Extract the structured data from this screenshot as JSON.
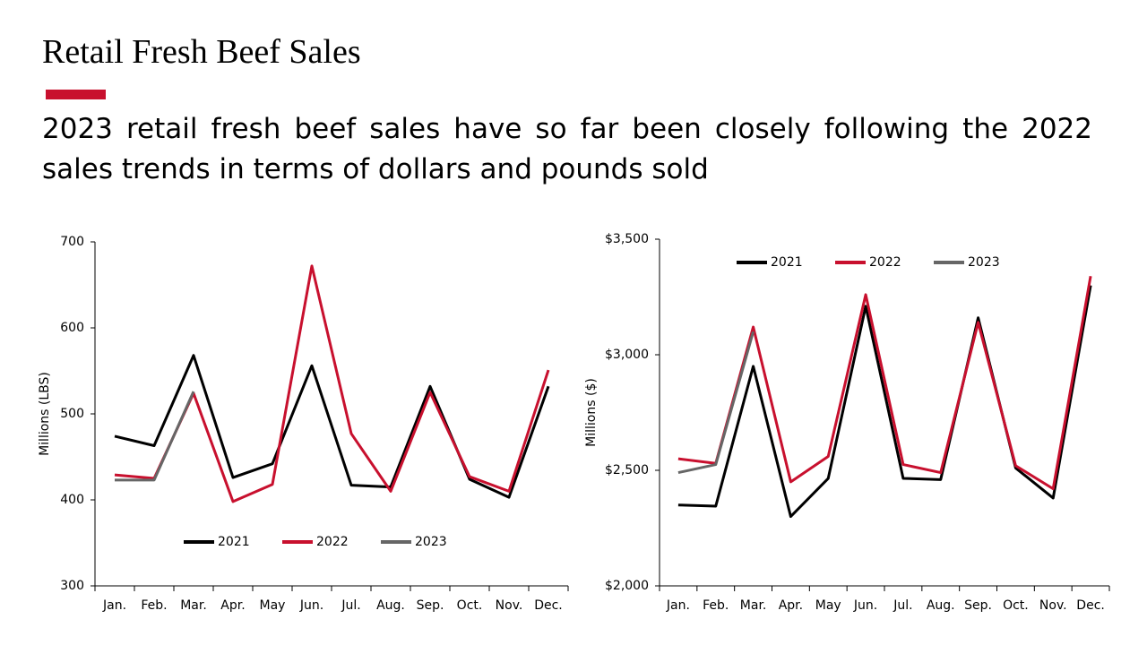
{
  "title": "Retail Fresh Beef Sales",
  "subtitle": "2023 retail fresh beef sales have so far been closely following the 2022 sales trends in terms of dollars and pounds sold",
  "chart_data": [
    {
      "type": "line",
      "ylabel": "Millions (LBS)",
      "categories": [
        "Jan.",
        "Feb.",
        "Mar.",
        "Apr.",
        "May",
        "Jun.",
        "Jul.",
        "Aug.",
        "Sep.",
        "Oct.",
        "Nov.",
        "Dec."
      ],
      "series": [
        {
          "name": "2021",
          "color": "#000000",
          "values": [
            474,
            463,
            568,
            426,
            442,
            556,
            417,
            415,
            532,
            424,
            403,
            532
          ]
        },
        {
          "name": "2022",
          "color": "#c8102e",
          "values": [
            429,
            425,
            524,
            398,
            418,
            672,
            477,
            410,
            525,
            427,
            410,
            551
          ]
        },
        {
          "name": "2023",
          "color": "#666666",
          "values": [
            423,
            423,
            526,
            null,
            null,
            null,
            null,
            null,
            null,
            null,
            null,
            null
          ]
        }
      ],
      "ylim": [
        300,
        700
      ],
      "yticks": [
        300,
        400,
        500,
        600,
        700
      ],
      "legend": "lower center"
    },
    {
      "type": "line",
      "ylabel": "Millions ($)",
      "categories": [
        "Jan.",
        "Feb.",
        "Mar.",
        "Apr.",
        "May",
        "Jun.",
        "Jul.",
        "Aug.",
        "Sep.",
        "Oct.",
        "Nov.",
        "Dec."
      ],
      "series": [
        {
          "name": "2021",
          "color": "#000000",
          "values": [
            2350,
            2345,
            2950,
            2300,
            2465,
            3210,
            2465,
            2460,
            3160,
            2510,
            2380,
            3300
          ]
        },
        {
          "name": "2022",
          "color": "#c8102e",
          "values": [
            2550,
            2530,
            3120,
            2450,
            2560,
            3260,
            2525,
            2490,
            3140,
            2520,
            2420,
            3340
          ]
        },
        {
          "name": "2023",
          "color": "#666666",
          "values": [
            2490,
            2525,
            3100,
            null,
            null,
            null,
            null,
            null,
            null,
            null,
            null,
            null
          ]
        }
      ],
      "ylim": [
        2000,
        3500
      ],
      "yticks": [
        {
          "value": 2000,
          "label": "$2,000"
        },
        {
          "value": 2500,
          "label": "$2,500"
        },
        {
          "value": 3000,
          "label": "$3,000"
        },
        {
          "value": 3500,
          "label": "$3,500"
        }
      ],
      "legend": "upper center"
    }
  ]
}
